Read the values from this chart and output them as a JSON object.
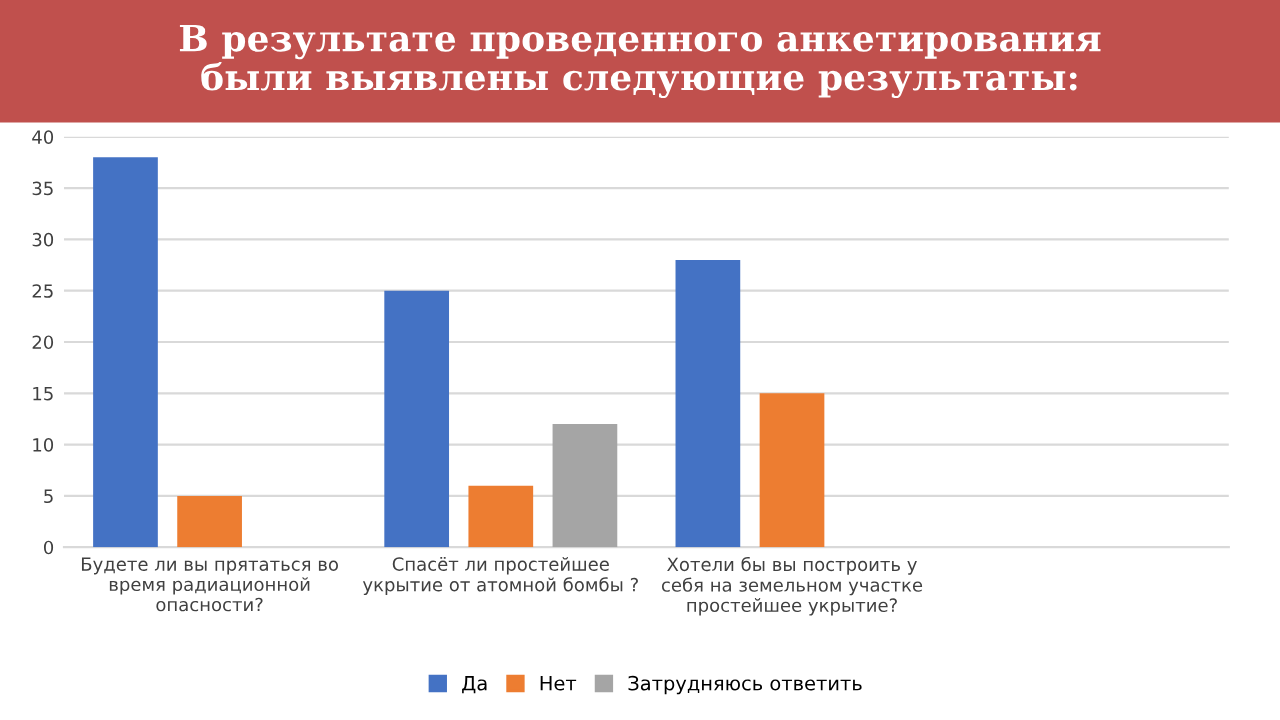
{
  "chart_data": {
    "type": "bar",
    "title": "В результате проведенного анкетирования\nбыли выявлены следующие результаты:",
    "categories": [
      "Будете ли вы прятаться во\nвремя радиационной\nопасности?",
      "Спасёт ли простейшее\nукрытие от атомной бомбы ?",
      "Хотели бы вы построить у\nсебя на земельном участке\nпростейшее укрытие?",
      null
    ],
    "series": [
      {
        "name": "Да",
        "color": "#4472c4",
        "values": [
          38,
          25,
          28,
          null
        ]
      },
      {
        "name": "Нет",
        "color": "#ed7d31",
        "values": [
          5,
          6,
          15,
          null
        ]
      },
      {
        "name": "Затрудняюсь ответить",
        "color": "#a5a5a5",
        "values": [
          null,
          12,
          null,
          null
        ]
      }
    ],
    "ylim": [
      0,
      40
    ],
    "yticks": [
      0,
      5,
      10,
      15,
      20,
      25,
      30,
      35,
      40
    ],
    "grid": "y",
    "legend": "bottom"
  }
}
